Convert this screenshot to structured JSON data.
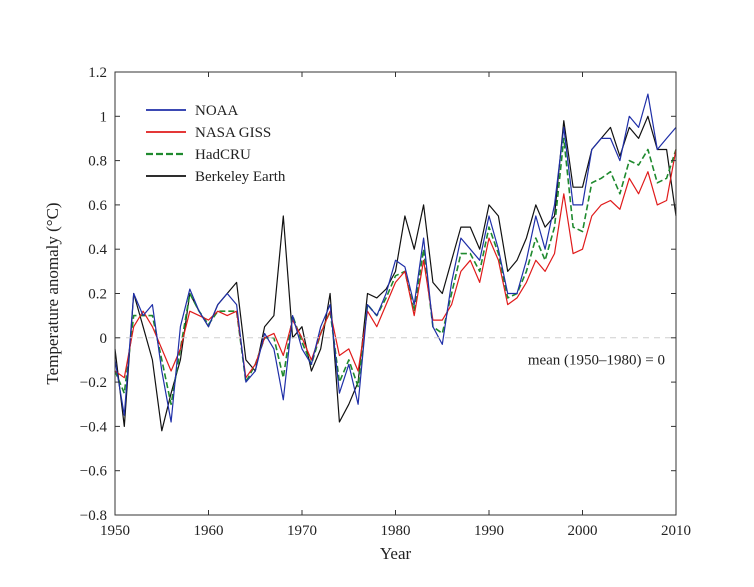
{
  "chart_data": {
    "type": "line",
    "xlabel": "Year",
    "ylabel": "Temperature anomaly (°C)",
    "xlim": [
      1950,
      2010
    ],
    "ylim": [
      -0.8,
      1.2
    ],
    "x_ticks": [
      1950,
      1960,
      1970,
      1980,
      1990,
      2000,
      2010
    ],
    "y_ticks": [
      -0.8,
      -0.6,
      -0.4,
      -0.2,
      0,
      0.2,
      0.4,
      0.6,
      0.8,
      1,
      1.2
    ],
    "y_tick_labels": [
      "−0.8",
      "−0.6",
      "−0.4",
      "−0.2",
      "0",
      "0.2",
      "0.4",
      "0.6",
      "0.8",
      "1",
      "1.2"
    ],
    "grid": false,
    "legend_position": "top-left",
    "annotation": "mean (1950–1980) = 0",
    "reference_line_y": 0,
    "x": [
      1950,
      1951,
      1952,
      1953,
      1954,
      1955,
      1956,
      1957,
      1958,
      1959,
      1960,
      1961,
      1962,
      1963,
      1964,
      1965,
      1966,
      1967,
      1968,
      1969,
      1970,
      1971,
      1972,
      1973,
      1974,
      1975,
      1976,
      1977,
      1978,
      1979,
      1980,
      1981,
      1982,
      1983,
      1984,
      1985,
      1986,
      1987,
      1988,
      1989,
      1990,
      1991,
      1992,
      1993,
      1994,
      1995,
      1996,
      1997,
      1998,
      1999,
      2000,
      2001,
      2002,
      2003,
      2004,
      2005,
      2006,
      2007,
      2008,
      2009,
      2010
    ],
    "series": [
      {
        "name": "NOAA",
        "color": "#1f2fa8",
        "dash": "solid",
        "values": [
          -0.1,
          -0.35,
          0.2,
          0.1,
          0.15,
          -0.15,
          -0.38,
          0.05,
          0.22,
          0.12,
          0.05,
          0.15,
          0.2,
          0.15,
          -0.2,
          -0.15,
          0.02,
          -0.05,
          -0.28,
          0.1,
          -0.05,
          -0.12,
          0.05,
          0.15,
          -0.25,
          -0.12,
          -0.3,
          0.15,
          0.1,
          0.2,
          0.35,
          0.32,
          0.15,
          0.45,
          0.05,
          -0.03,
          0.25,
          0.45,
          0.4,
          0.35,
          0.55,
          0.4,
          0.2,
          0.2,
          0.35,
          0.55,
          0.4,
          0.6,
          0.95,
          0.6,
          0.6,
          0.85,
          0.9,
          0.9,
          0.8,
          1.0,
          0.95,
          1.1,
          0.85,
          0.9,
          0.95
        ]
      },
      {
        "name": "NASA GISS",
        "color": "#e01b1b",
        "dash": "solid",
        "values": [
          -0.15,
          -0.18,
          0.05,
          0.12,
          0.05,
          -0.05,
          -0.15,
          -0.05,
          0.12,
          0.1,
          0.08,
          0.12,
          0.1,
          0.12,
          -0.18,
          -0.12,
          0.0,
          0.02,
          -0.08,
          0.08,
          0.0,
          -0.1,
          0.02,
          0.12,
          -0.08,
          -0.05,
          -0.15,
          0.12,
          0.05,
          0.15,
          0.25,
          0.3,
          0.1,
          0.35,
          0.08,
          0.08,
          0.15,
          0.3,
          0.35,
          0.25,
          0.45,
          0.35,
          0.15,
          0.18,
          0.25,
          0.35,
          0.3,
          0.38,
          0.65,
          0.38,
          0.4,
          0.55,
          0.6,
          0.62,
          0.58,
          0.72,
          0.65,
          0.75,
          0.6,
          0.62,
          0.85
        ]
      },
      {
        "name": "HadCRU",
        "color": "#1f8a2e",
        "dash": "dashed",
        "values": [
          -0.15,
          -0.25,
          0.1,
          0.1,
          0.1,
          -0.1,
          -0.3,
          -0.05,
          0.2,
          0.12,
          0.06,
          0.12,
          0.12,
          0.12,
          -0.2,
          -0.12,
          0.0,
          0.0,
          -0.18,
          0.1,
          -0.02,
          -0.12,
          0.02,
          0.12,
          -0.2,
          -0.1,
          -0.22,
          0.15,
          0.1,
          0.18,
          0.28,
          0.3,
          0.12,
          0.4,
          0.05,
          0.02,
          0.2,
          0.38,
          0.38,
          0.3,
          0.5,
          0.38,
          0.18,
          0.2,
          0.3,
          0.45,
          0.35,
          0.5,
          0.9,
          0.5,
          0.48,
          0.7,
          0.72,
          0.75,
          0.65,
          0.8,
          0.78,
          0.85,
          0.7,
          0.72,
          0.85
        ]
      },
      {
        "name": "Berkeley Earth",
        "color": "#111111",
        "dash": "solid",
        "values": [
          -0.05,
          -0.4,
          0.2,
          0.05,
          -0.1,
          -0.42,
          -0.25,
          -0.1,
          0.2,
          0.12,
          0.05,
          0.15,
          0.2,
          0.25,
          -0.1,
          -0.15,
          0.05,
          0.1,
          0.55,
          0.0,
          0.05,
          -0.15,
          -0.05,
          0.2,
          -0.38,
          -0.3,
          -0.2,
          0.2,
          0.18,
          0.22,
          0.3,
          0.55,
          0.4,
          0.6,
          0.25,
          0.2,
          0.35,
          0.5,
          0.5,
          0.4,
          0.6,
          0.55,
          0.3,
          0.35,
          0.45,
          0.6,
          0.5,
          0.55,
          0.98,
          0.68,
          0.68,
          0.85,
          0.9,
          0.95,
          0.82,
          0.95,
          0.9,
          1.0,
          0.85,
          0.85,
          0.55
        ]
      }
    ]
  }
}
